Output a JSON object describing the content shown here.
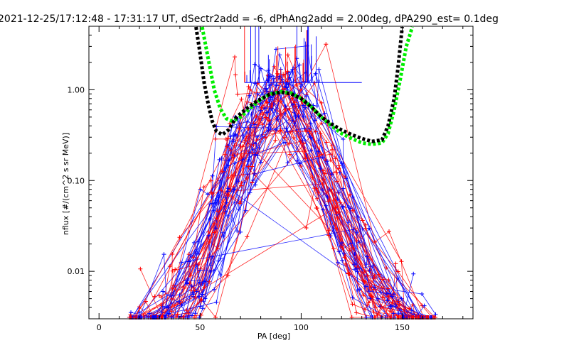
{
  "chart_data": {
    "type": "line",
    "title": "2021-12-25/17:12:48 - 17:31:17 UT, dSectr2add = -6, dPhAng2add = 2.00deg, dPA290_est=   0.1deg",
    "xlabel": "PA [deg]",
    "ylabel": "nflux [#/(cm^2 s sr MeV)]",
    "xlim": [
      -5,
      185
    ],
    "ylim": [
      0.003,
      5.0
    ],
    "yscale": "log",
    "x_ticks": [
      0,
      50,
      100,
      150
    ],
    "x_tick_labels": [
      "0",
      "50",
      "100",
      "150"
    ],
    "y_ticks": [
      0.01,
      0.1,
      1.0
    ],
    "y_tick_labels": [
      "0.01",
      "0.10",
      "1.00"
    ],
    "grid": false,
    "colors": {
      "red": "#ff0000",
      "blue": "#0000ff",
      "black": "#000000",
      "green": "#00ee00"
    },
    "series": [
      {
        "color": "green",
        "style": "thick-dashed",
        "x": [
          51,
          54,
          57,
          60,
          63,
          66,
          70,
          75,
          80,
          85,
          90,
          95,
          100,
          105,
          110,
          115,
          120,
          125,
          130,
          135,
          140,
          143,
          146,
          149,
          152,
          155
        ],
        "y": [
          5.0,
          2.2,
          1.0,
          0.62,
          0.48,
          0.45,
          0.5,
          0.63,
          0.78,
          0.9,
          0.95,
          0.92,
          0.8,
          0.65,
          0.5,
          0.4,
          0.33,
          0.29,
          0.26,
          0.25,
          0.26,
          0.33,
          0.6,
          1.3,
          3.0,
          5.0
        ]
      },
      {
        "color": "black",
        "style": "thick-dashed",
        "x": [
          48,
          50,
          52,
          54,
          56,
          58,
          61,
          64,
          68,
          73,
          78,
          84,
          90,
          95,
          100,
          105,
          110,
          115,
          120,
          125,
          130,
          135,
          140,
          143,
          146,
          148,
          150
        ],
        "y": [
          5.0,
          2.5,
          1.2,
          0.7,
          0.45,
          0.35,
          0.32,
          0.36,
          0.5,
          0.62,
          0.75,
          0.88,
          0.94,
          0.9,
          0.8,
          0.65,
          0.5,
          0.42,
          0.36,
          0.32,
          0.29,
          0.27,
          0.28,
          0.4,
          0.8,
          1.8,
          5.0
        ]
      }
    ]
  }
}
